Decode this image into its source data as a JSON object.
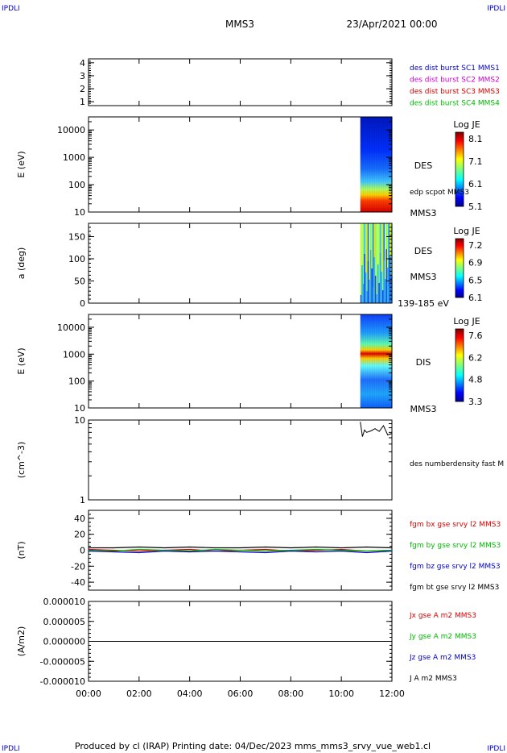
{
  "corner": {
    "tl": "IPDLI",
    "tr": "IPDLI",
    "bl": "IPDLI",
    "br": "IPDLI"
  },
  "header": {
    "title": "MMS3",
    "date": "23/Apr/2021 00:00"
  },
  "footer": "Produced by cl (IRAP)   Printing date: 04/Dec/2023   mms_mms3_srvy_vue_web1.cl",
  "colors": {
    "mms1": "#0000cc",
    "mms2": "#cc00cc",
    "mms3": "#dd0000",
    "mms4": "#00bb00",
    "bx": "#dd0000",
    "by": "#00bb00",
    "bz": "#0000cc",
    "bt": "#000000"
  },
  "chart_data": [
    {
      "type": "scatter",
      "id": "burst",
      "y_ticks": [
        "1",
        "2",
        "3",
        "4"
      ],
      "ylim": [
        0.7,
        4.3
      ],
      "legend": [
        "des dist burst SC1 MMS1",
        "des dist burst SC2 MMS2",
        "des dist burst SC3 MMS3",
        "des dist burst SC4 MMS4"
      ]
    },
    {
      "type": "heatmap",
      "id": "des_energy",
      "ylabel": "E (eV)",
      "log_y": true,
      "ylim": [
        10,
        30000
      ],
      "y_ticks": [
        "10",
        "100",
        "1000",
        "10000"
      ],
      "side_labels": [
        "DES",
        "edp scpot MMS3",
        "MMS3"
      ],
      "colorbar": {
        "title": "Log JE",
        "ticks": [
          "8.1",
          "7.1",
          "6.1",
          "5.1"
        ]
      },
      "data_start": "10:45",
      "data_end": "12:00"
    },
    {
      "type": "heatmap",
      "id": "des_pitch",
      "ylabel": "a (deg)",
      "ylim": [
        0,
        180
      ],
      "y_ticks": [
        "0",
        "50",
        "100",
        "150"
      ],
      "side_labels": [
        "DES",
        "MMS3",
        "139-185 eV"
      ],
      "colorbar": {
        "title": "Log JE",
        "ticks": [
          "7.2",
          "6.9",
          "6.5",
          "6.1"
        ]
      },
      "data_start": "10:45",
      "data_end": "12:00"
    },
    {
      "type": "heatmap",
      "id": "dis_energy",
      "ylabel": "E (eV)",
      "log_y": true,
      "ylim": [
        10,
        30000
      ],
      "y_ticks": [
        "10",
        "100",
        "1000",
        "10000"
      ],
      "side_labels": [
        "DIS",
        "MMS3"
      ],
      "colorbar": {
        "title": "Log JE",
        "ticks": [
          "7.6",
          "6.2",
          "4.8",
          "3.3"
        ]
      },
      "data_start": "10:45",
      "data_end": "12:00"
    },
    {
      "type": "line",
      "id": "density",
      "ylabel": "(cm^-3)",
      "log_y": true,
      "ylim": [
        1,
        10
      ],
      "y_ticks": [
        "1",
        "10"
      ],
      "legend": [
        "des numberdensity fast M"
      ],
      "x": [
        "10:45",
        "10:50",
        "10:55",
        "11:00",
        "11:10",
        "11:20",
        "11:30",
        "11:40",
        "11:50",
        "12:00"
      ],
      "values": [
        9.5,
        6.2,
        7.5,
        7.0,
        7.3,
        7.8,
        7.2,
        8.5,
        6.5,
        6.8
      ]
    },
    {
      "type": "line",
      "id": "fgm",
      "ylabel": "(nT)",
      "ylim": [
        -50,
        50
      ],
      "y_ticks": [
        "-40",
        "-20",
        "0",
        "20",
        "40"
      ],
      "legend": [
        "fgm bx gse srvy l2 MMS3",
        "fgm by gse srvy l2 MMS3",
        "fgm bz gse srvy l2 MMS3",
        "fgm bt gse srvy l2 MMS3"
      ],
      "series": [
        {
          "name": "fgm bx gse srvy l2 MMS3",
          "values": [
            1,
            0,
            -1,
            0,
            1,
            -1,
            0,
            1,
            -1,
            0,
            1,
            -1,
            0
          ]
        },
        {
          "name": "fgm by gse srvy l2 MMS3",
          "values": [
            0,
            -1,
            1,
            0,
            -1,
            1,
            0,
            -1,
            0,
            1,
            0,
            -1,
            0
          ]
        },
        {
          "name": "fgm bz gse srvy l2 MMS3",
          "values": [
            -1,
            -2,
            -3,
            -1,
            -2,
            -1,
            -2,
            -3,
            -1,
            -2,
            -1,
            -3,
            -1
          ]
        },
        {
          "name": "fgm bt gse srvy l2 MMS3",
          "values": [
            3,
            3,
            4,
            3,
            4,
            3,
            3,
            4,
            3,
            4,
            3,
            4,
            3
          ]
        }
      ]
    },
    {
      "type": "line",
      "id": "current",
      "ylabel": "(A/m2)",
      "ylim": [
        -1e-05,
        1e-05
      ],
      "y_ticks": [
        "-0.000010",
        "-0.000005",
        "0.000000",
        "0.000005",
        "0.000010"
      ],
      "legend": [
        "Jx gse A m2 MMS3",
        "Jy gse A m2 MMS3",
        "Jz gse A m2 MMS3",
        "J A m2 MMS3"
      ],
      "values": [
        0,
        0,
        0,
        0,
        0,
        0,
        0,
        0,
        0,
        0,
        0,
        0,
        0
      ]
    }
  ],
  "x_axis": {
    "ticks": [
      "00:00",
      "02:00",
      "04:00",
      "06:00",
      "08:00",
      "10:00",
      "12:00"
    ]
  }
}
